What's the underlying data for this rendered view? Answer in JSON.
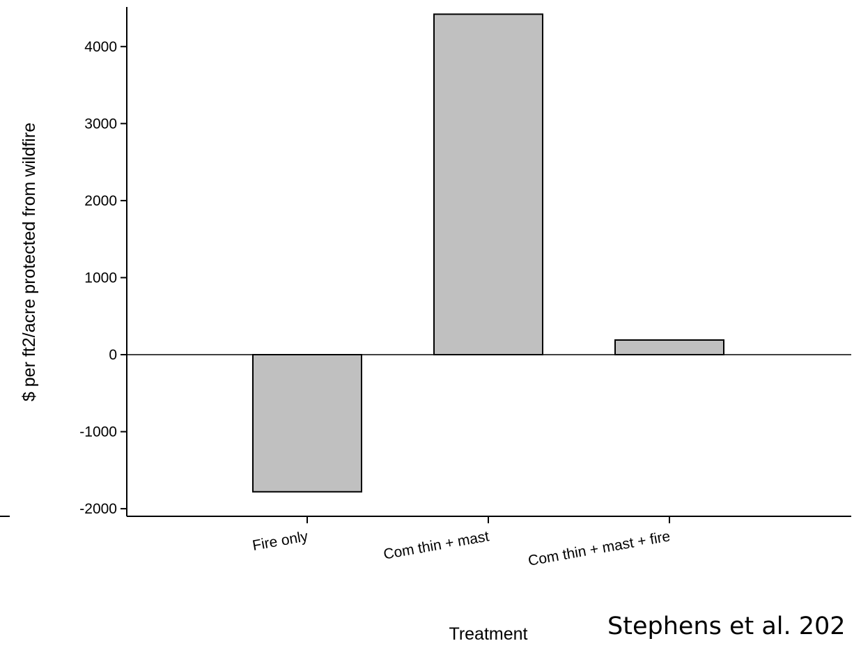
{
  "chart_data": {
    "type": "bar",
    "categories": [
      "Fire only",
      "Com thin + mast",
      "Com thin + mast + fire"
    ],
    "values": [
      -1780,
      4420,
      190
    ],
    "xlabel": "Treatment",
    "ylabel": "$ per ft2/acre protected from wildfire",
    "ylim": [
      -2100,
      4550
    ],
    "yticks": [
      -2000,
      -1000,
      0,
      1000,
      2000,
      3000,
      4000
    ],
    "ytick_labels": [
      "-2000",
      "-1000",
      "0",
      "1000",
      "2000",
      "3000",
      "4000"
    ],
    "bar_color": "#c0c0c0",
    "grid": false
  },
  "annotation": {
    "citation": "Stephens et al. 202"
  }
}
